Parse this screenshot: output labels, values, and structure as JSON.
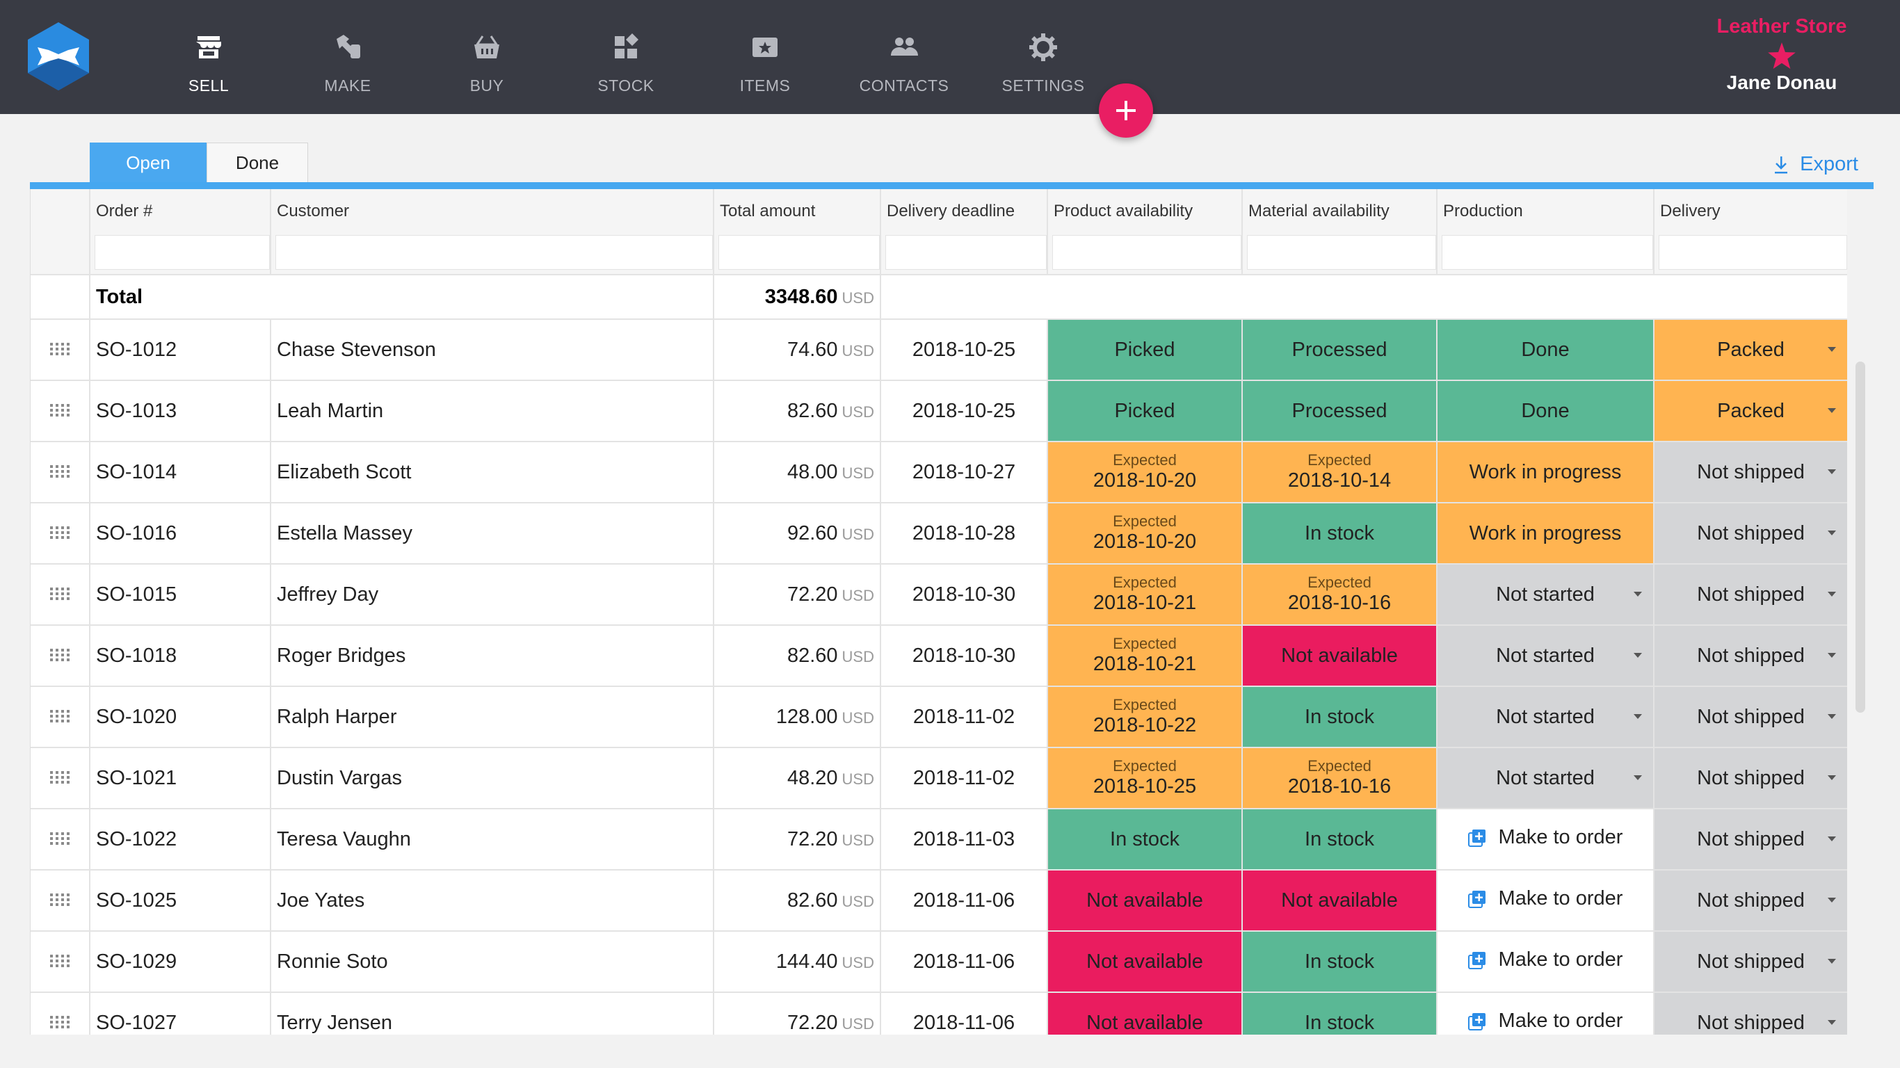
{
  "app": {
    "store_name": "Leather Store",
    "user_name": "Jane Donau",
    "brand_color": "#e91e63"
  },
  "nav": [
    {
      "label": "SELL",
      "icon": "store-icon",
      "active": true
    },
    {
      "label": "MAKE",
      "icon": "hammer-icon",
      "active": false
    },
    {
      "label": "BUY",
      "icon": "basket-icon",
      "active": false
    },
    {
      "label": "STOCK",
      "icon": "stock-icon",
      "active": false
    },
    {
      "label": "ITEMS",
      "icon": "items-icon",
      "active": false
    },
    {
      "label": "CONTACTS",
      "icon": "contacts-icon",
      "active": false
    },
    {
      "label": "SETTINGS",
      "icon": "gear-icon",
      "active": false
    }
  ],
  "tabs": {
    "open": "Open",
    "done": "Done"
  },
  "export_label": "Export",
  "columns": [
    "Order #",
    "Customer",
    "Total amount",
    "Delivery deadline",
    "Product availability",
    "Material availability",
    "Production",
    "Delivery"
  ],
  "total": {
    "label": "Total",
    "amount": "3348.60",
    "currency": "USD"
  },
  "orders": [
    {
      "order": "SO-1012",
      "customer": "Chase Stevenson",
      "amount": "74.60",
      "currency": "USD",
      "deadline": "2018-10-25",
      "product": {
        "status": "green",
        "text": "Picked"
      },
      "material": {
        "status": "green",
        "text": "Processed"
      },
      "production": {
        "status": "green",
        "text": "Done"
      },
      "delivery": {
        "status": "orange",
        "text": "Packed"
      }
    },
    {
      "order": "SO-1013",
      "customer": "Leah Martin",
      "amount": "82.60",
      "currency": "USD",
      "deadline": "2018-10-25",
      "product": {
        "status": "green",
        "text": "Picked"
      },
      "material": {
        "status": "green",
        "text": "Processed"
      },
      "production": {
        "status": "green",
        "text": "Done"
      },
      "delivery": {
        "status": "orange",
        "text": "Packed"
      }
    },
    {
      "order": "SO-1014",
      "customer": "Elizabeth Scott",
      "amount": "48.00",
      "currency": "USD",
      "deadline": "2018-10-27",
      "product": {
        "status": "orange",
        "label": "Expected",
        "text": "2018-10-20"
      },
      "material": {
        "status": "orange",
        "label": "Expected",
        "text": "2018-10-14"
      },
      "production": {
        "status": "orange",
        "text": "Work in progress"
      },
      "delivery": {
        "status": "grey",
        "text": "Not shipped"
      }
    },
    {
      "order": "SO-1016",
      "customer": "Estella Massey",
      "amount": "92.60",
      "currency": "USD",
      "deadline": "2018-10-28",
      "product": {
        "status": "orange",
        "label": "Expected",
        "text": "2018-10-20"
      },
      "material": {
        "status": "green",
        "text": "In stock"
      },
      "production": {
        "status": "orange",
        "text": "Work in progress"
      },
      "delivery": {
        "status": "grey",
        "text": "Not shipped"
      }
    },
    {
      "order": "SO-1015",
      "customer": "Jeffrey Day",
      "amount": "72.20",
      "currency": "USD",
      "deadline": "2018-10-30",
      "product": {
        "status": "orange",
        "label": "Expected",
        "text": "2018-10-21"
      },
      "material": {
        "status": "orange",
        "label": "Expected",
        "text": "2018-10-16"
      },
      "production": {
        "status": "grey",
        "text": "Not started"
      },
      "delivery": {
        "status": "grey",
        "text": "Not shipped"
      }
    },
    {
      "order": "SO-1018",
      "customer": "Roger Bridges",
      "amount": "82.60",
      "currency": "USD",
      "deadline": "2018-10-30",
      "product": {
        "status": "orange",
        "label": "Expected",
        "text": "2018-10-21"
      },
      "material": {
        "status": "red",
        "text": "Not available"
      },
      "production": {
        "status": "grey",
        "text": "Not started"
      },
      "delivery": {
        "status": "grey",
        "text": "Not shipped"
      }
    },
    {
      "order": "SO-1020",
      "customer": "Ralph Harper",
      "amount": "128.00",
      "currency": "USD",
      "deadline": "2018-11-02",
      "product": {
        "status": "orange",
        "label": "Expected",
        "text": "2018-10-22"
      },
      "material": {
        "status": "green",
        "text": "In stock"
      },
      "production": {
        "status": "grey",
        "text": "Not started"
      },
      "delivery": {
        "status": "grey",
        "text": "Not shipped"
      }
    },
    {
      "order": "SO-1021",
      "customer": "Dustin Vargas",
      "amount": "48.20",
      "currency": "USD",
      "deadline": "2018-11-02",
      "product": {
        "status": "orange",
        "label": "Expected",
        "text": "2018-10-25"
      },
      "material": {
        "status": "orange",
        "label": "Expected",
        "text": "2018-10-16"
      },
      "production": {
        "status": "grey",
        "text": "Not started"
      },
      "delivery": {
        "status": "grey",
        "text": "Not shipped"
      }
    },
    {
      "order": "SO-1022",
      "customer": "Teresa Vaughn",
      "amount": "72.20",
      "currency": "USD",
      "deadline": "2018-11-03",
      "product": {
        "status": "green",
        "text": "In stock"
      },
      "material": {
        "status": "green",
        "text": "In stock"
      },
      "production": {
        "status": "white",
        "text": "Make to order"
      },
      "delivery": {
        "status": "grey",
        "text": "Not shipped"
      }
    },
    {
      "order": "SO-1025",
      "customer": "Joe Yates",
      "amount": "82.60",
      "currency": "USD",
      "deadline": "2018-11-06",
      "product": {
        "status": "red",
        "text": "Not available"
      },
      "material": {
        "status": "red",
        "text": "Not available"
      },
      "production": {
        "status": "white",
        "text": "Make to order"
      },
      "delivery": {
        "status": "grey",
        "text": "Not shipped"
      }
    },
    {
      "order": "SO-1029",
      "customer": "Ronnie Soto",
      "amount": "144.40",
      "currency": "USD",
      "deadline": "2018-11-06",
      "product": {
        "status": "red",
        "text": "Not available"
      },
      "material": {
        "status": "green",
        "text": "In stock"
      },
      "production": {
        "status": "white",
        "text": "Make to order"
      },
      "delivery": {
        "status": "grey",
        "text": "Not shipped"
      }
    },
    {
      "order": "SO-1027",
      "customer": "Terry Jensen",
      "amount": "72.20",
      "currency": "USD",
      "deadline": "2018-11-06",
      "product": {
        "status": "red",
        "text": "Not available"
      },
      "material": {
        "status": "green",
        "text": "In stock"
      },
      "production": {
        "status": "white",
        "text": "Make to order"
      },
      "delivery": {
        "status": "grey",
        "text": "Not shipped"
      }
    }
  ],
  "status_colors": {
    "green": "#5ab895",
    "orange": "#ffb451",
    "red": "#ea1c5f",
    "grey": "#d4d5d7",
    "accent": "#45a7f0"
  }
}
